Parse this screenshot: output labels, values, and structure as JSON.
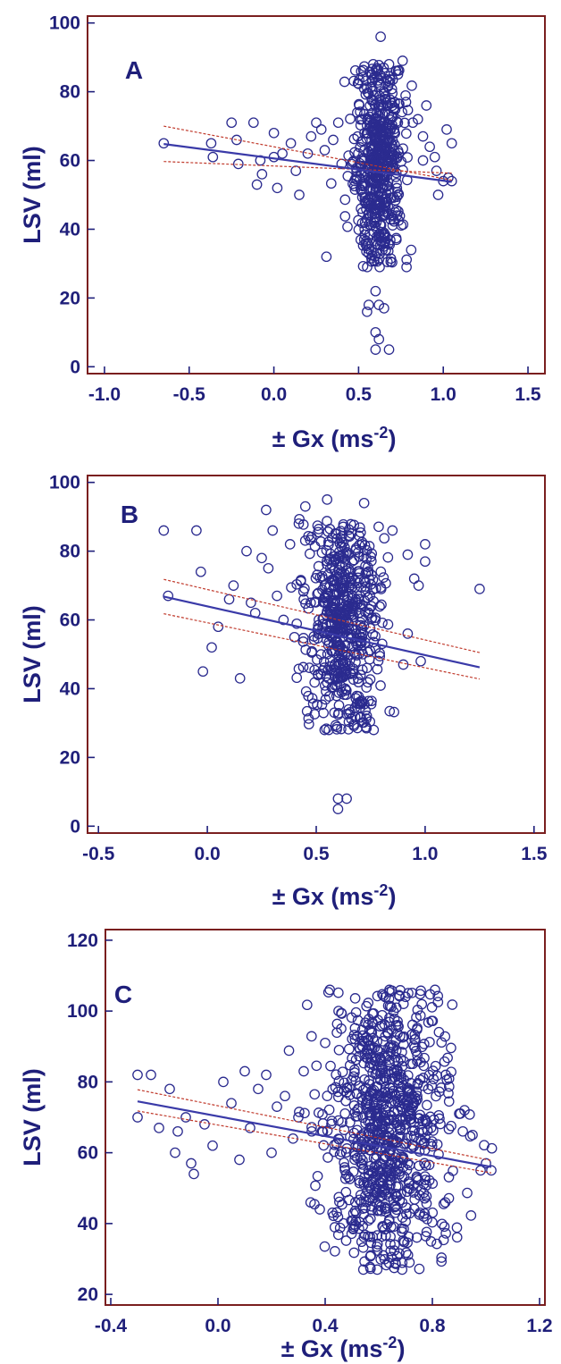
{
  "chart_data": [
    {
      "type": "scatter",
      "panel_label": "A",
      "xlabel": "± Gx (ms",
      "xlabel_sup": "-2",
      "xlabel_end": ")",
      "ylabel": "LSV (ml)",
      "xlim": [
        -1.1,
        1.6
      ],
      "ylim": [
        -2,
        102
      ],
      "xticks": [
        -1.0,
        -0.5,
        0.0,
        0.5,
        1.0,
        1.5
      ],
      "xtick_labels": [
        "-1.0",
        "-0.5",
        "0.0",
        "0.5",
        "1.0",
        "1.5"
      ],
      "yticks": [
        0,
        20,
        40,
        60,
        80,
        100
      ],
      "ytick_labels": [
        "0",
        "20",
        "40",
        "60",
        "80",
        "100"
      ],
      "regression": {
        "x": [
          -0.65,
          1.05
        ],
        "y": [
          64.8,
          53.8
        ]
      },
      "ci_upper": {
        "x": [
          -0.65,
          1.05
        ],
        "y": [
          70.0,
          54.3
        ]
      },
      "ci_lower": {
        "x": [
          -0.65,
          1.05
        ],
        "y": [
          59.7,
          56.3
        ]
      },
      "n_points": 620,
      "cluster": {
        "x_center": 0.62,
        "x_spread": 0.07,
        "y_min": 29,
        "y_max": 88
      },
      "points": [
        [
          -0.65,
          65
        ],
        [
          -0.37,
          65
        ],
        [
          -0.36,
          61
        ],
        [
          -0.25,
          71
        ],
        [
          -0.22,
          66
        ],
        [
          -0.21,
          59
        ],
        [
          -0.12,
          71
        ],
        [
          -0.08,
          60
        ],
        [
          -0.1,
          53
        ],
        [
          -0.07,
          56
        ],
        [
          0.0,
          68
        ],
        [
          0.0,
          61
        ],
        [
          0.02,
          52
        ],
        [
          0.05,
          62
        ],
        [
          0.1,
          65
        ],
        [
          0.13,
          57
        ],
        [
          0.15,
          50
        ],
        [
          0.2,
          62
        ],
        [
          0.22,
          67
        ],
        [
          0.25,
          71
        ],
        [
          0.28,
          69
        ],
        [
          0.3,
          63
        ],
        [
          0.31,
          32
        ],
        [
          0.35,
          66
        ],
        [
          0.38,
          71
        ],
        [
          0.4,
          59
        ],
        [
          0.55,
          16
        ],
        [
          0.56,
          18
        ],
        [
          0.6,
          22
        ],
        [
          0.62,
          18
        ],
        [
          0.65,
          17
        ],
        [
          0.6,
          10
        ],
        [
          0.62,
          8
        ],
        [
          0.6,
          5
        ],
        [
          0.68,
          5
        ],
        [
          0.68,
          88
        ],
        [
          0.63,
          96
        ],
        [
          0.76,
          89
        ],
        [
          0.72,
          86
        ],
        [
          0.78,
          77
        ],
        [
          0.82,
          71
        ],
        [
          0.85,
          72
        ],
        [
          0.88,
          67
        ],
        [
          0.88,
          60
        ],
        [
          0.9,
          76
        ],
        [
          0.92,
          64
        ],
        [
          0.95,
          61
        ],
        [
          0.96,
          57
        ],
        [
          1.0,
          54
        ],
        [
          1.02,
          69
        ],
        [
          1.03,
          55
        ],
        [
          1.05,
          54
        ],
        [
          1.05,
          65
        ],
        [
          0.97,
          50
        ]
      ]
    },
    {
      "type": "scatter",
      "panel_label": "B",
      "xlabel": "± Gx (ms",
      "xlabel_sup": "-2",
      "xlabel_end": ")",
      "ylabel": "LSV (ml)",
      "xlim": [
        -0.55,
        1.55
      ],
      "ylim": [
        -2,
        102
      ],
      "xticks": [
        -0.5,
        0.0,
        0.5,
        1.0,
        1.5
      ],
      "xtick_labels": [
        "-0.5",
        "0.0",
        "0.5",
        "1.0",
        "1.5"
      ],
      "yticks": [
        0,
        20,
        40,
        60,
        80,
        100
      ],
      "ytick_labels": [
        "0",
        "20",
        "40",
        "60",
        "80",
        "100"
      ],
      "regression": {
        "x": [
          -0.2,
          1.25
        ],
        "y": [
          66.8,
          46.2
        ]
      },
      "ci_upper": {
        "x": [
          -0.2,
          1.25
        ],
        "y": [
          71.8,
          50.5
        ]
      },
      "ci_lower": {
        "x": [
          -0.2,
          1.25
        ],
        "y": [
          61.8,
          42.8
        ]
      },
      "n_points": 600,
      "cluster": {
        "x_center": 0.62,
        "x_spread": 0.08,
        "y_min": 28,
        "y_max": 90
      },
      "points": [
        [
          -0.2,
          86
        ],
        [
          -0.18,
          67
        ],
        [
          -0.05,
          86
        ],
        [
          -0.03,
          74
        ],
        [
          -0.02,
          45
        ],
        [
          0.02,
          52
        ],
        [
          0.05,
          58
        ],
        [
          0.1,
          66
        ],
        [
          0.12,
          70
        ],
        [
          0.15,
          43
        ],
        [
          0.18,
          80
        ],
        [
          0.2,
          65
        ],
        [
          0.22,
          62
        ],
        [
          0.25,
          78
        ],
        [
          0.27,
          92
        ],
        [
          0.28,
          75
        ],
        [
          0.3,
          86
        ],
        [
          0.32,
          67
        ],
        [
          0.35,
          60
        ],
        [
          0.38,
          82
        ],
        [
          0.4,
          55
        ],
        [
          0.42,
          88
        ],
        [
          0.45,
          93
        ],
        [
          0.55,
          95
        ],
        [
          0.6,
          5
        ],
        [
          0.6,
          8
        ],
        [
          0.64,
          8
        ],
        [
          0.72,
          94
        ],
        [
          0.85,
          86
        ],
        [
          0.92,
          79
        ],
        [
          0.95,
          72
        ],
        [
          0.97,
          70
        ],
        [
          1.0,
          82
        ],
        [
          1.0,
          77
        ],
        [
          0.98,
          48
        ],
        [
          1.25,
          69
        ],
        [
          0.92,
          56
        ],
        [
          0.9,
          47
        ]
      ]
    },
    {
      "type": "scatter",
      "panel_label": "C",
      "xlabel": "± Gx (ms",
      "xlabel_sup": "-2",
      "xlabel_end": ")",
      "ylabel": "LSV (ml)",
      "xlim": [
        -0.42,
        1.22
      ],
      "ylim": [
        17,
        123
      ],
      "xticks": [
        -0.4,
        0.0,
        0.4,
        0.8,
        1.2
      ],
      "xtick_labels": [
        "-0.4",
        "0.0",
        "0.4",
        "0.8",
        "1.2"
      ],
      "yticks": [
        20,
        40,
        60,
        80,
        100,
        120
      ],
      "ytick_labels": [
        "20",
        "40",
        "60",
        "80",
        "100",
        "120"
      ],
      "regression": {
        "x": [
          -0.3,
          1.02
        ],
        "y": [
          74.5,
          56.0
        ]
      },
      "ci_upper": {
        "x": [
          -0.3,
          1.02
        ],
        "y": [
          77.8,
          57.8
        ]
      },
      "ci_lower": {
        "x": [
          -0.3,
          1.02
        ],
        "y": [
          71.8,
          54.3
        ]
      },
      "n_points": 900,
      "cluster": {
        "x_center": 0.63,
        "x_spread": 0.11,
        "y_min": 27,
        "y_max": 106
      },
      "points": [
        [
          -0.3,
          82
        ],
        [
          -0.3,
          70
        ],
        [
          -0.25,
          82
        ],
        [
          -0.22,
          67
        ],
        [
          -0.18,
          78
        ],
        [
          -0.16,
          60
        ],
        [
          -0.15,
          66
        ],
        [
          -0.12,
          70
        ],
        [
          -0.1,
          57
        ],
        [
          -0.09,
          54
        ],
        [
          -0.05,
          68
        ],
        [
          -0.02,
          62
        ],
        [
          0.02,
          80
        ],
        [
          0.05,
          74
        ],
        [
          0.08,
          58
        ],
        [
          0.1,
          83
        ],
        [
          0.12,
          67
        ],
        [
          0.15,
          78
        ],
        [
          0.18,
          82
        ],
        [
          0.2,
          60
        ],
        [
          0.22,
          73
        ],
        [
          0.25,
          76
        ],
        [
          0.28,
          64
        ],
        [
          0.3,
          70
        ],
        [
          0.32,
          83
        ],
        [
          0.35,
          66
        ],
        [
          0.38,
          44
        ],
        [
          0.4,
          91
        ],
        [
          0.45,
          100
        ],
        [
          0.46,
          95
        ],
        [
          0.64,
          106
        ],
        [
          0.7,
          104
        ],
        [
          0.85,
          82
        ],
        [
          0.9,
          71
        ],
        [
          0.92,
          72
        ],
        [
          0.95,
          65
        ],
        [
          0.98,
          55
        ],
        [
          1.0,
          57
        ],
        [
          1.02,
          55
        ]
      ]
    }
  ]
}
